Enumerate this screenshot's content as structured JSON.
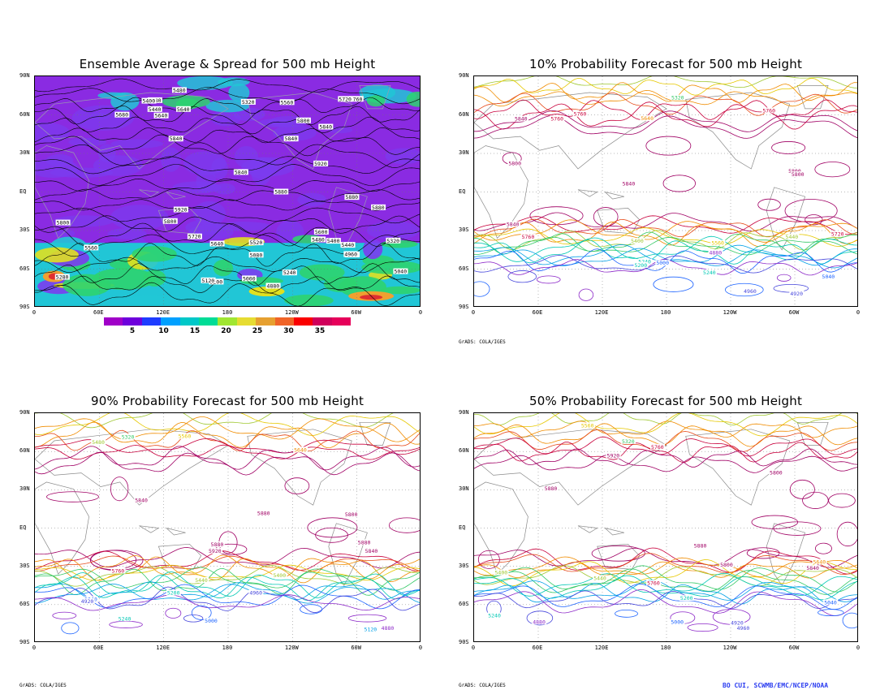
{
  "panels": [
    {
      "id": "ensemble",
      "title": "Ensemble Average & Spread for 500 mb Height",
      "type": "shaded"
    },
    {
      "id": "p10",
      "title": "10% Probability Forecast for 500 mb Height",
      "type": "contour"
    },
    {
      "id": "p90",
      "title": "90% Probability Forecast for 500 mb Height",
      "type": "contour"
    },
    {
      "id": "p50",
      "title": "50% Probability Forecast for 500 mb Height",
      "type": "contour"
    }
  ],
  "lat_labels": [
    "90N",
    "60N",
    "30N",
    "EQ",
    "30S",
    "60S",
    "90S"
  ],
  "lon_labels": [
    "0",
    "60E",
    "120E",
    "180",
    "120W",
    "60W",
    "0"
  ],
  "colorbar": {
    "colors": [
      "#a000c8",
      "#6e00dc",
      "#1e3cff",
      "#00a0ff",
      "#00c8c8",
      "#00dc96",
      "#a0e632",
      "#e6dc32",
      "#e6a030",
      "#f06428",
      "#fa0000",
      "#d0005a",
      "#e6005a"
    ],
    "labels": [
      "5",
      "10",
      "15",
      "20",
      "25",
      "30",
      "35"
    ]
  },
  "shading_palette": {
    "deep": "#8a2be2",
    "mid": "#7b3cf0",
    "cyan": "#21c6d6",
    "green": "#2dd36f",
    "yellow": "#e0e020",
    "orange": "#f0a030",
    "red": "#e03030"
  },
  "contour_colors": [
    "#a00064",
    "#c8003c",
    "#e64a19",
    "#f08c00",
    "#e6c800",
    "#a0c832",
    "#32c864",
    "#00c8b4",
    "#00a0e6",
    "#1e64ff",
    "#4646dc",
    "#8c28c8"
  ],
  "grads_note": "GrADS: COLA/IGES",
  "credit": "BO CUI, SCWMB/EMC/NCEP/NOAA",
  "contour_labels": {
    "ensemble": [
      "5440",
      "5480",
      "5400",
      "5440",
      "5380",
      "5520",
      "5560",
      "5640",
      "5840",
      "5880",
      "5920",
      "5800",
      "5760",
      "5840",
      "5880",
      "5920",
      "5560",
      "5600",
      "5640",
      "5680",
      "5640",
      "5720",
      "5840",
      "5880",
      "5800",
      "5840",
      "5800",
      "5720",
      "5280",
      "5320",
      "5240",
      "5200",
      "5080",
      "5040",
      "4920",
      "4880",
      "4960",
      "5000",
      "5120",
      "5320",
      "5480",
      "5400"
    ],
    "p10": [
      "5240",
      "5400",
      "5760",
      "5840",
      "5800",
      "5760",
      "5840",
      "5800",
      "5840",
      "5760",
      "5720",
      "5640",
      "5800",
      "5760",
      "5320",
      "5240",
      "5200",
      "5040",
      "4880",
      "4960",
      "5000",
      "4920",
      "5440",
      "5560"
    ],
    "p90": [
      "5880",
      "5840",
      "5920",
      "5880",
      "5800",
      "5840",
      "5760",
      "5640",
      "5320",
      "5240",
      "5200",
      "5120",
      "5040",
      "4880",
      "4960",
      "5000",
      "4920",
      "5440",
      "5480",
      "5400",
      "5560",
      "5880"
    ],
    "p50": [
      "5880",
      "5840",
      "5920",
      "5800",
      "5880",
      "5760",
      "5640",
      "5320",
      "5240",
      "5200",
      "5040",
      "4880",
      "4960",
      "5000",
      "4920",
      "5440",
      "5400",
      "5560",
      "5760",
      "5800"
    ]
  }
}
